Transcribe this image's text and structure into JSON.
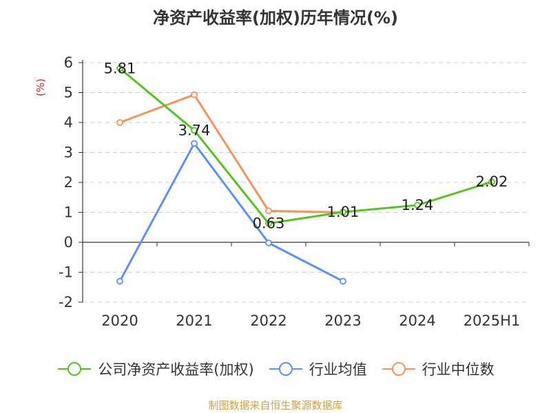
{
  "chart_data": {
    "type": "line",
    "title": "净资产收益率(加权)历年情况(%)",
    "ylabel": "(%)",
    "xlabel": "",
    "categories": [
      "2020",
      "2021",
      "2022",
      "2023",
      "2024",
      "2025H1"
    ],
    "ylim": [
      -2,
      6
    ],
    "yticks": [
      -2,
      -1,
      0,
      1,
      2,
      3,
      4,
      5,
      6
    ],
    "grid": "horizontal-dashed",
    "legend_position": "bottom",
    "series": [
      {
        "name": "公司净资产收益率(加权)",
        "color": "#52c41a",
        "values": [
          5.81,
          3.74,
          0.63,
          1.01,
          1.24,
          2.02
        ],
        "labels": [
          "5.81",
          "3.74",
          "0.63",
          "1.01",
          "1.24",
          "2.02"
        ]
      },
      {
        "name": "行业均值",
        "color": "#5b8ff9",
        "values": [
          -1.3,
          3.3,
          -0.02,
          -1.3,
          null,
          null
        ]
      },
      {
        "name": "行业中位数",
        "color": "#f6935c",
        "values": [
          4.0,
          4.93,
          1.05,
          1.0,
          null,
          null
        ]
      }
    ]
  },
  "footer": {
    "text": "制图数据来自恒生聚源数据库",
    "color": "#c8a24a"
  },
  "colors": {
    "axis": "#333333",
    "grid": "#cccccc",
    "ylabel": "#e02020"
  }
}
